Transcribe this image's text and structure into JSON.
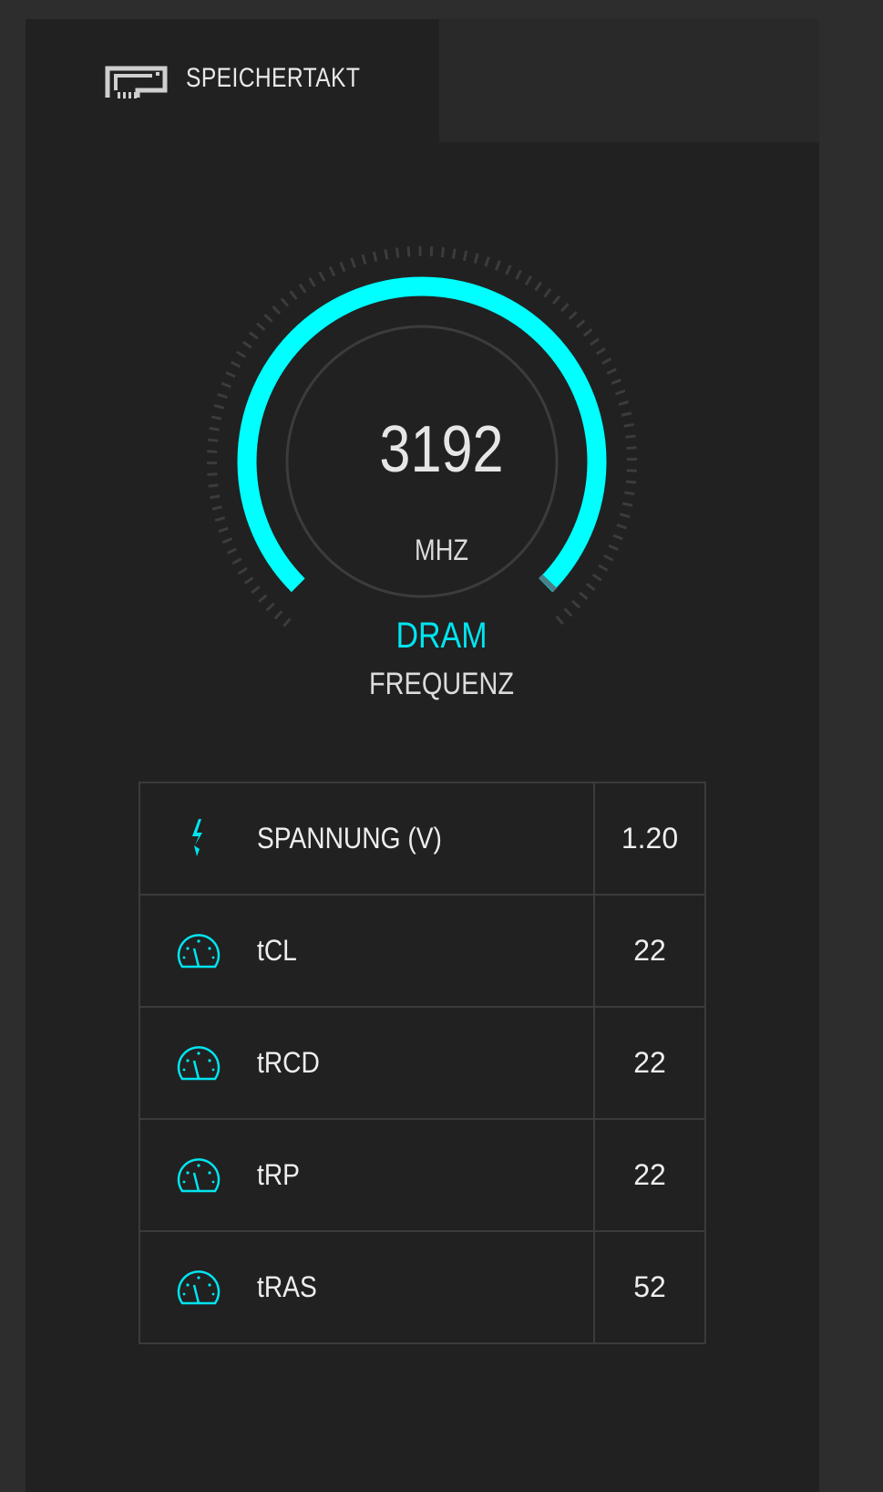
{
  "header": {
    "tab_label": "SPEICHERTAKT",
    "tab_icon": "memory-module-icon"
  },
  "gauge": {
    "value": "3192",
    "unit": "MHZ",
    "label": "DRAM",
    "sublabel": "FREQUENZ",
    "fill_fraction": 1.0,
    "accent": "#00ffff"
  },
  "rows": [
    {
      "icon": "lightning-bolt-icon",
      "label": "SPANNUNG (V)",
      "value": "1.20"
    },
    {
      "icon": "speedometer-icon",
      "label": "tCL",
      "value": "22"
    },
    {
      "icon": "speedometer-icon",
      "label": "tRCD",
      "value": "22"
    },
    {
      "icon": "speedometer-icon",
      "label": "tRP",
      "value": "22"
    },
    {
      "icon": "speedometer-icon",
      "label": "tRAS",
      "value": "52"
    }
  ]
}
